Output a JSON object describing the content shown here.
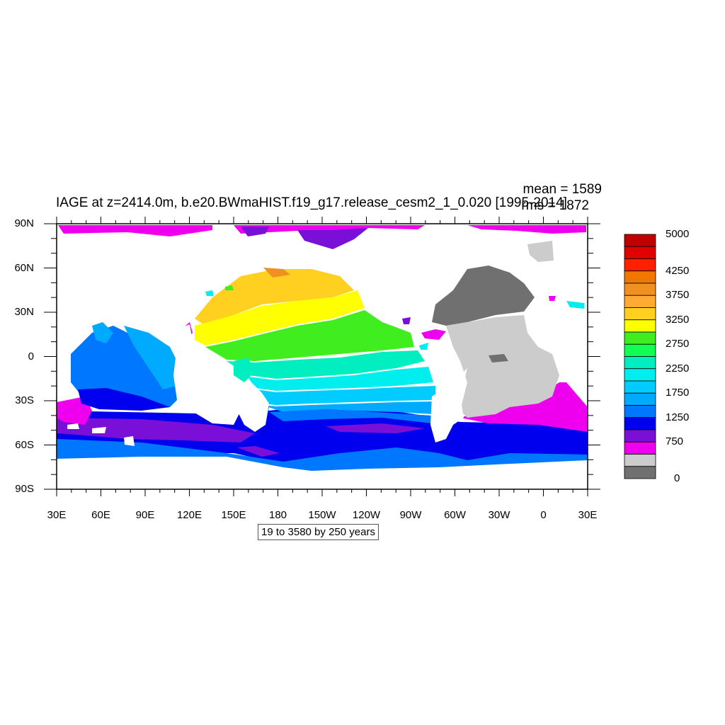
{
  "title": "IAGE at z=2414.0m, b.e20.BWmaHIST.f19_g17.release_cesm2_1_0.020 [1995-2014]",
  "mean_label": "mean = 1589",
  "rms_label": "rms = 1872",
  "contour_info": "19 to 3580 by 250 years",
  "lat_ticks": [
    "90N",
    "60N",
    "30N",
    "0",
    "30S",
    "60S",
    "90S"
  ],
  "lon_ticks": [
    "30E",
    "60E",
    "90E",
    "120E",
    "150E",
    "180",
    "150W",
    "120W",
    "90W",
    "60W",
    "30W",
    "0",
    "30E"
  ],
  "colorbar": {
    "labels": [
      "5000",
      "4250",
      "3750",
      "3250",
      "2750",
      "2250",
      "1750",
      "1250",
      "750",
      "0"
    ],
    "colors": [
      "#c00000",
      "#e00000",
      "#ff2000",
      "#f07800",
      "#f09020",
      "#ffaa30",
      "#ffd020",
      "#ffff00",
      "#40ee20",
      "#10ff50",
      "#00eec0",
      "#00eeee",
      "#00ccff",
      "#00aaff",
      "#0077ff",
      "#0000ee",
      "#7a10d8",
      "#ee00ee",
      "#cccccc",
      "#707070"
    ]
  },
  "colors": {
    "land": "#ffffff",
    "frame": "#000000"
  }
}
